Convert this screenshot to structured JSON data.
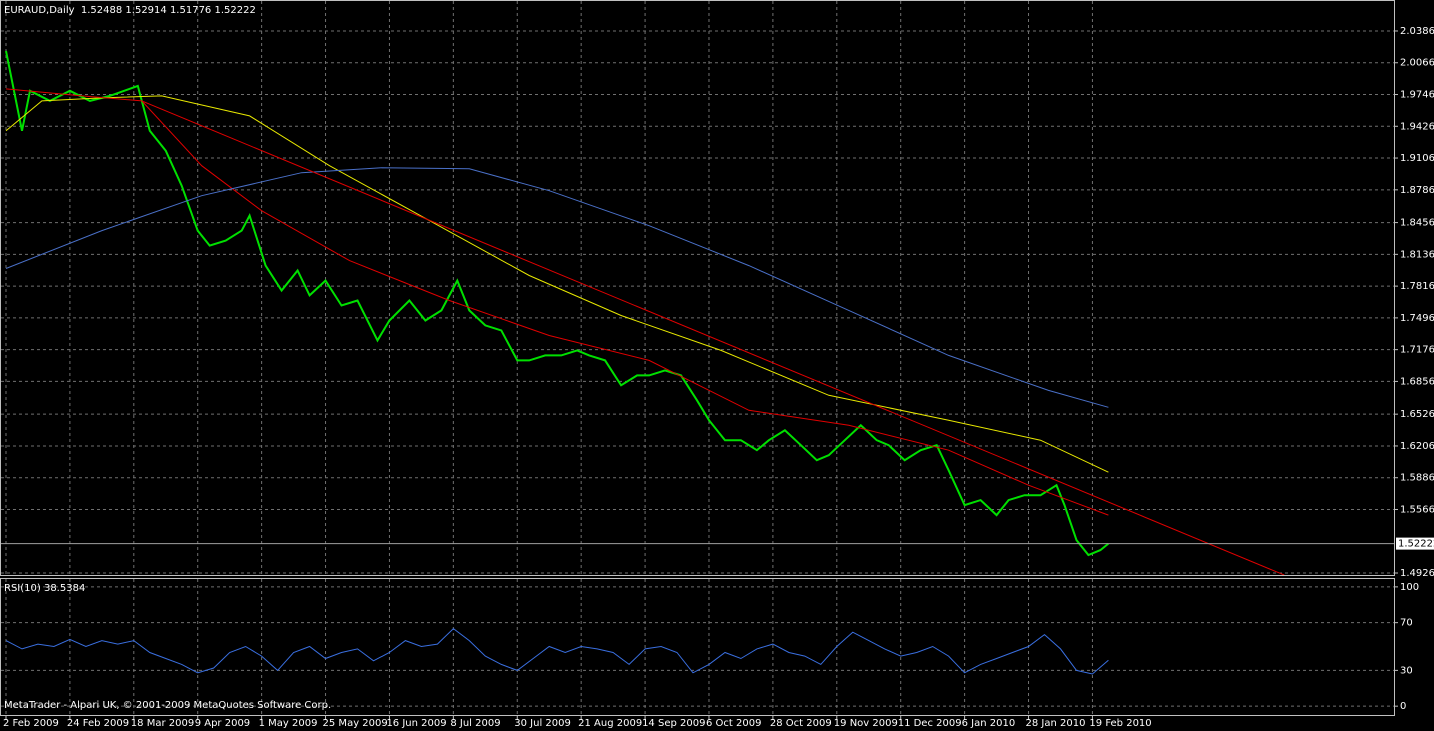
{
  "chart_data": [
    {
      "type": "line",
      "title": "EURAUD,Daily  1.52488 1.52914 1.51776 1.52222",
      "last_price": 1.52222,
      "xlim": [
        -1.25,
        347.5
      ],
      "xticks": [
        {
          "value": 0,
          "label": "2 Feb 2009"
        },
        {
          "value": 16,
          "label": "24 Feb 2009"
        },
        {
          "value": 32,
          "label": "18 Mar 2009"
        },
        {
          "value": 48,
          "label": "9 Apr 2009"
        },
        {
          "value": 64,
          "label": "1 May 2009"
        },
        {
          "value": 80,
          "label": "25 May 2009"
        },
        {
          "value": 96,
          "label": "16 Jun 2009"
        },
        {
          "value": 112,
          "label": "8 Jul 2009"
        },
        {
          "value": 128,
          "label": "30 Jul 2009"
        },
        {
          "value": 144,
          "label": "21 Aug 2009"
        },
        {
          "value": 160,
          "label": "14 Sep 2009"
        },
        {
          "value": 176,
          "label": "6 Oct 2009"
        },
        {
          "value": 192,
          "label": "28 Oct 2009"
        },
        {
          "value": 208,
          "label": "19 Nov 2009"
        },
        {
          "value": 224,
          "label": "11 Dec 2009"
        },
        {
          "value": 240,
          "label": "6 Jan 2010"
        },
        {
          "value": 256,
          "label": "28 Jan 2010"
        },
        {
          "value": 272,
          "label": "19 Feb 2010"
        }
      ],
      "ylim": [
        1.4906,
        2.0688
      ],
      "yticks": [
        {
          "value": 2.0386,
          "label": "2.03860"
        },
        {
          "value": 2.0066,
          "label": "2.00660"
        },
        {
          "value": 1.9746,
          "label": "1.97460"
        },
        {
          "value": 1.9426,
          "label": "1.94260"
        },
        {
          "value": 1.9106,
          "label": "1.91060"
        },
        {
          "value": 1.8786,
          "label": "1.87860"
        },
        {
          "value": 1.8456,
          "label": "1.84560"
        },
        {
          "value": 1.8136,
          "label": "1.81360"
        },
        {
          "value": 1.7816,
          "label": "1.78160"
        },
        {
          "value": 1.7496,
          "label": "1.74960"
        },
        {
          "value": 1.7176,
          "label": "1.71760"
        },
        {
          "value": 1.6856,
          "label": "1.68560"
        },
        {
          "value": 1.6526,
          "label": "1.65260"
        },
        {
          "value": 1.6206,
          "label": "1.62060"
        },
        {
          "value": 1.5886,
          "label": "1.58860"
        },
        {
          "value": 1.5566,
          "label": "1.55660"
        },
        {
          "value": 1.4926,
          "label": "1.49260"
        }
      ],
      "grid": true,
      "series": [
        {
          "color": "#00e000",
          "x": [
            0,
            4,
            6,
            11,
            16,
            21,
            26,
            33,
            36,
            40,
            44,
            48,
            51,
            55,
            59,
            61,
            65,
            69,
            73,
            76,
            80,
            84,
            88,
            93,
            96,
            101,
            105,
            109,
            113,
            116,
            120,
            124,
            128,
            131,
            135,
            139,
            143,
            146,
            150,
            154,
            158,
            161,
            165,
            169,
            173,
            176,
            180,
            184,
            188,
            191,
            195,
            199,
            203,
            206,
            210,
            214,
            218,
            221,
            225,
            229,
            233,
            236,
            240,
            244,
            248,
            251,
            255,
            259,
            263,
            265,
            268,
            271,
            274,
            276
          ],
          "values": [
            2.0185,
            1.9381,
            1.9783,
            1.9682,
            1.9783,
            1.9682,
            1.9732,
            1.9833,
            1.9381,
            1.9179,
            1.8827,
            1.8375,
            1.8224,
            1.8274,
            1.8375,
            1.8526,
            1.8023,
            1.7772,
            1.7973,
            1.7722,
            1.7872,
            1.7621,
            1.7671,
            1.7269,
            1.747,
            1.7671,
            1.747,
            1.7571,
            1.7872,
            1.7571,
            1.742,
            1.737,
            1.7068,
            1.7068,
            1.7118,
            1.7118,
            1.7168,
            1.7118,
            1.7068,
            1.6817,
            1.6917,
            1.6917,
            1.6967,
            1.6917,
            1.6666,
            1.6465,
            1.6264,
            1.6264,
            1.6163,
            1.6264,
            1.6364,
            1.6213,
            1.6062,
            1.6113,
            1.6264,
            1.6414,
            1.6264,
            1.6213,
            1.6062,
            1.6163,
            1.6213,
            1.5962,
            1.561,
            1.566,
            1.5509,
            1.566,
            1.571,
            1.571,
            1.5811,
            1.561,
            1.5258,
            1.5107,
            1.5157,
            1.5222
          ]
        },
        {
          "color": "#e8e800",
          "x": [
            0,
            9,
            24,
            39,
            61,
            81,
            106,
            131,
            154,
            179,
            206,
            236,
            259,
            276
          ],
          "values": [
            1.9381,
            1.9682,
            1.9712,
            1.9732,
            1.9531,
            1.9029,
            1.8476,
            1.7923,
            1.752,
            1.7168,
            1.6716,
            1.6465,
            1.6264,
            1.5942
          ]
        },
        {
          "color": "#e00000",
          "x": [
            0,
            19,
            34,
            49,
            64,
            86,
            111,
            136,
            161,
            186,
            211,
            236,
            256,
            276
          ],
          "values": [
            1.9803,
            1.9732,
            1.9682,
            1.9029,
            1.8576,
            1.8073,
            1.7671,
            1.7319,
            1.7068,
            1.6565,
            1.6414,
            1.6163,
            1.5811,
            1.5509
          ]
        },
        {
          "color": "#4a70c8",
          "x": [
            0,
            24,
            49,
            74,
            94,
            116,
            136,
            161,
            186,
            211,
            236,
            261,
            276
          ],
          "values": [
            1.7993,
            1.8375,
            1.8727,
            1.8958,
            1.9008,
            1.8998,
            1.8777,
            1.8425,
            1.8023,
            1.7571,
            1.7118,
            1.6766,
            1.6595
          ]
        },
        {
          "color": "#e00000",
          "x": [
            34,
            320
          ],
          "values": [
            1.9682,
            1.4906
          ]
        }
      ]
    },
    {
      "type": "line",
      "title": "RSI(10) 38.5384",
      "xlim": [
        -1.25,
        347.5
      ],
      "ylim": [
        -7.4,
        106.6
      ],
      "yticks": [
        0,
        30,
        70,
        100
      ],
      "grid": true,
      "series": [
        {
          "color": "#3a6fe0",
          "x": [
            0,
            4,
            8,
            12,
            16,
            20,
            24,
            28,
            32,
            36,
            40,
            44,
            48,
            52,
            56,
            60,
            64,
            68,
            72,
            76,
            80,
            84,
            88,
            92,
            96,
            100,
            104,
            108,
            112,
            116,
            120,
            124,
            128,
            132,
            136,
            140,
            144,
            148,
            152,
            156,
            160,
            164,
            168,
            172,
            176,
            180,
            184,
            188,
            192,
            196,
            200,
            204,
            208,
            212,
            216,
            220,
            224,
            228,
            232,
            236,
            240,
            244,
            248,
            252,
            256,
            260,
            264,
            268,
            272,
            276
          ],
          "values": [
            55,
            48,
            52,
            50,
            56,
            50,
            55,
            52,
            55,
            45,
            40,
            35,
            28,
            32,
            45,
            50,
            42,
            30,
            45,
            50,
            40,
            45,
            48,
            38,
            45,
            55,
            50,
            52,
            65,
            55,
            42,
            35,
            30,
            40,
            50,
            45,
            50,
            48,
            45,
            35,
            48,
            50,
            45,
            28,
            35,
            45,
            40,
            48,
            52,
            45,
            42,
            35,
            50,
            62,
            55,
            48,
            42,
            45,
            50,
            42,
            28,
            35,
            40,
            45,
            50,
            60,
            48,
            30,
            27,
            38.5384
          ]
        }
      ]
    }
  ],
  "footer": "MetaTrader - Alpari UK, © 2001-2009 MetaQuotes Software Corp."
}
